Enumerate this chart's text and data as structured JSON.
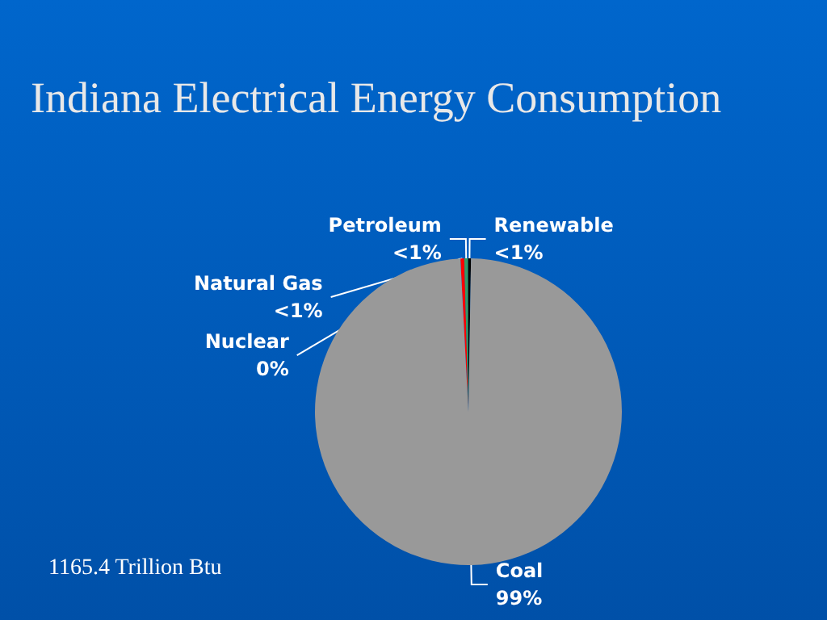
{
  "chart_data": {
    "type": "pie",
    "title": "Indiana Electrical Energy Consumption",
    "categories": [
      "Natural Gas",
      "Petroleum",
      "Renewable",
      "Coal",
      "Nuclear"
    ],
    "values": [
      0.4,
      0.4,
      0.3,
      98.9,
      0
    ],
    "colors": [
      "#ff0000",
      "#339966",
      "#000000",
      "#999999",
      "#808000"
    ],
    "value_labels": [
      "<1%",
      "<1%",
      "<1%",
      "99%",
      "0%"
    ],
    "annotations": [
      "1165.4 Trillion Btu"
    ]
  }
}
